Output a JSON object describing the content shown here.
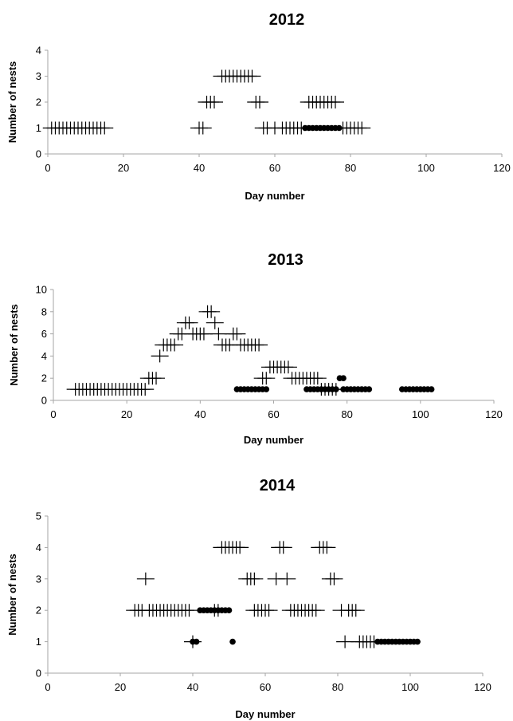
{
  "chart_data": [
    {
      "type": "scatter",
      "title": "2012",
      "xlabel": "Day number",
      "ylabel": "Number of nests",
      "xlim": [
        0,
        120
      ],
      "ylim": [
        0,
        4
      ],
      "xticks": [
        "0",
        "20",
        "40",
        "60",
        "80",
        "100",
        "120"
      ],
      "yticks": [
        "0",
        "1",
        "2",
        "3",
        "4"
      ],
      "grid": false,
      "series": [
        {
          "marker": "plus",
          "points": [
            [
              1,
              1
            ],
            [
              2,
              1
            ],
            [
              3,
              1
            ],
            [
              4,
              1
            ],
            [
              5,
              1
            ],
            [
              6,
              1
            ],
            [
              7,
              1
            ],
            [
              8,
              1
            ],
            [
              9,
              1
            ],
            [
              10,
              1
            ],
            [
              11,
              1
            ],
            [
              12,
              1
            ],
            [
              13,
              1
            ],
            [
              14,
              1
            ],
            [
              15,
              1
            ],
            [
              40,
              1
            ],
            [
              41,
              1
            ],
            [
              42,
              2
            ],
            [
              43,
              2
            ],
            [
              44,
              2
            ],
            [
              46,
              3
            ],
            [
              47,
              3
            ],
            [
              48,
              3
            ],
            [
              49,
              3
            ],
            [
              50,
              3
            ],
            [
              51,
              3
            ],
            [
              52,
              3
            ],
            [
              53,
              3
            ],
            [
              54,
              3
            ],
            [
              55,
              2
            ],
            [
              56,
              2
            ],
            [
              57,
              1
            ],
            [
              58,
              1
            ],
            [
              60,
              1
            ],
            [
              62,
              1
            ],
            [
              63,
              1
            ],
            [
              64,
              1
            ],
            [
              65,
              1
            ],
            [
              66,
              1
            ],
            [
              67,
              1
            ],
            [
              69,
              2
            ],
            [
              70,
              2
            ],
            [
              71,
              2
            ],
            [
              72,
              2
            ],
            [
              73,
              2
            ],
            [
              74,
              2
            ],
            [
              75,
              2
            ],
            [
              76,
              2
            ],
            [
              78,
              1
            ],
            [
              79,
              1
            ],
            [
              80,
              1
            ],
            [
              81,
              1
            ],
            [
              82,
              1
            ],
            [
              83,
              1
            ]
          ]
        },
        {
          "marker": "dot",
          "points": [
            [
              68,
              1
            ],
            [
              69,
              1
            ],
            [
              70,
              1
            ],
            [
              71,
              1
            ],
            [
              72,
              1
            ],
            [
              73,
              1
            ],
            [
              74,
              1
            ],
            [
              75,
              1
            ],
            [
              76,
              1
            ],
            [
              77,
              1
            ]
          ]
        }
      ]
    },
    {
      "type": "scatter",
      "title": "2013",
      "xlabel": "Day number",
      "ylabel": "Number of nests",
      "xlim": [
        0,
        120
      ],
      "ylim": [
        0,
        10
      ],
      "xticks": [
        "0",
        "20",
        "40",
        "60",
        "80",
        "100",
        "120"
      ],
      "yticks": [
        "0",
        "2",
        "4",
        "6",
        "8",
        "10"
      ],
      "grid": false,
      "series": [
        {
          "marker": "plus",
          "points": [
            [
              6,
              1
            ],
            [
              7,
              1
            ],
            [
              8,
              1
            ],
            [
              9,
              1
            ],
            [
              10,
              1
            ],
            [
              11,
              1
            ],
            [
              12,
              1
            ],
            [
              13,
              1
            ],
            [
              14,
              1
            ],
            [
              15,
              1
            ],
            [
              16,
              1
            ],
            [
              17,
              1
            ],
            [
              18,
              1
            ],
            [
              19,
              1
            ],
            [
              20,
              1
            ],
            [
              21,
              1
            ],
            [
              22,
              1
            ],
            [
              23,
              1
            ],
            [
              24,
              1
            ],
            [
              25,
              1
            ],
            [
              26,
              2
            ],
            [
              27,
              2
            ],
            [
              28,
              2
            ],
            [
              29,
              4
            ],
            [
              30,
              5
            ],
            [
              31,
              5
            ],
            [
              32,
              5
            ],
            [
              33,
              5
            ],
            [
              34,
              6
            ],
            [
              35,
              6
            ],
            [
              36,
              7
            ],
            [
              37,
              7
            ],
            [
              38,
              6
            ],
            [
              39,
              6
            ],
            [
              40,
              6
            ],
            [
              41,
              6
            ],
            [
              42,
              8
            ],
            [
              43,
              8
            ],
            [
              44,
              7
            ],
            [
              45,
              6
            ],
            [
              46,
              5
            ],
            [
              47,
              5
            ],
            [
              48,
              5
            ],
            [
              49,
              6
            ],
            [
              50,
              6
            ],
            [
              51,
              5
            ],
            [
              52,
              5
            ],
            [
              53,
              5
            ],
            [
              54,
              5
            ],
            [
              55,
              5
            ],
            [
              56,
              5
            ],
            [
              57,
              2
            ],
            [
              58,
              2
            ],
            [
              59,
              3
            ],
            [
              60,
              3
            ],
            [
              61,
              3
            ],
            [
              62,
              3
            ],
            [
              63,
              3
            ],
            [
              64,
              3
            ],
            [
              65,
              2
            ],
            [
              66,
              2
            ],
            [
              67,
              2
            ],
            [
              68,
              2
            ],
            [
              69,
              2
            ],
            [
              70,
              2
            ],
            [
              71,
              2
            ],
            [
              72,
              2
            ],
            [
              73,
              1
            ],
            [
              74,
              1
            ],
            [
              75,
              1
            ],
            [
              76,
              1
            ],
            [
              77,
              1
            ]
          ]
        },
        {
          "marker": "dot",
          "points": [
            [
              50,
              1
            ],
            [
              51,
              1
            ],
            [
              52,
              1
            ],
            [
              53,
              1
            ],
            [
              54,
              1
            ],
            [
              55,
              1
            ],
            [
              56,
              1
            ],
            [
              57,
              1
            ],
            [
              58,
              1
            ],
            [
              69,
              1
            ],
            [
              70,
              1
            ],
            [
              71,
              1
            ],
            [
              72,
              1
            ],
            [
              73,
              1
            ],
            [
              74,
              1
            ],
            [
              75,
              1
            ],
            [
              76,
              1
            ],
            [
              77,
              1
            ],
            [
              78,
              2
            ],
            [
              79,
              2
            ],
            [
              79,
              1
            ],
            [
              80,
              1
            ],
            [
              81,
              1
            ],
            [
              82,
              1
            ],
            [
              83,
              1
            ],
            [
              84,
              1
            ],
            [
              85,
              1
            ],
            [
              86,
              1
            ],
            [
              95,
              1
            ],
            [
              96,
              1
            ],
            [
              97,
              1
            ],
            [
              98,
              1
            ],
            [
              99,
              1
            ],
            [
              100,
              1
            ],
            [
              101,
              1
            ],
            [
              102,
              1
            ],
            [
              103,
              1
            ]
          ]
        }
      ]
    },
    {
      "type": "scatter",
      "title": "2014",
      "xlabel": "Day number",
      "ylabel": "Number of nests",
      "xlim": [
        0,
        120
      ],
      "ylim": [
        0,
        5
      ],
      "xticks": [
        "0",
        "20",
        "40",
        "60",
        "80",
        "100",
        "120"
      ],
      "yticks": [
        "0",
        "1",
        "2",
        "3",
        "4",
        "5"
      ],
      "grid": false,
      "series": [
        {
          "marker": "plus",
          "points": [
            [
              24,
              2
            ],
            [
              25,
              2
            ],
            [
              26,
              2
            ],
            [
              27,
              3
            ],
            [
              28,
              2
            ],
            [
              29,
              2
            ],
            [
              30,
              2
            ],
            [
              31,
              2
            ],
            [
              32,
              2
            ],
            [
              33,
              2
            ],
            [
              34,
              2
            ],
            [
              35,
              2
            ],
            [
              36,
              2
            ],
            [
              37,
              2
            ],
            [
              38,
              2
            ],
            [
              39,
              2
            ],
            [
              40,
              1
            ],
            [
              46,
              2
            ],
            [
              47,
              2
            ],
            [
              48,
              4
            ],
            [
              49,
              4
            ],
            [
              50,
              4
            ],
            [
              51,
              4
            ],
            [
              52,
              4
            ],
            [
              53,
              4
            ],
            [
              55,
              3
            ],
            [
              56,
              3
            ],
            [
              57,
              3
            ],
            [
              57,
              2
            ],
            [
              58,
              2
            ],
            [
              59,
              2
            ],
            [
              60,
              2
            ],
            [
              61,
              2
            ],
            [
              63,
              3
            ],
            [
              64,
              4
            ],
            [
              65,
              4
            ],
            [
              66,
              3
            ],
            [
              67,
              2
            ],
            [
              68,
              2
            ],
            [
              69,
              2
            ],
            [
              70,
              2
            ],
            [
              71,
              2
            ],
            [
              72,
              2
            ],
            [
              73,
              2
            ],
            [
              74,
              2
            ],
            [
              75,
              4
            ],
            [
              76,
              4
            ],
            [
              77,
              4
            ],
            [
              78,
              3
            ],
            [
              79,
              3
            ],
            [
              81,
              2
            ],
            [
              82,
              1
            ],
            [
              83,
              2
            ],
            [
              84,
              2
            ],
            [
              85,
              2
            ],
            [
              86,
              1
            ],
            [
              87,
              1
            ],
            [
              88,
              1
            ],
            [
              89,
              1
            ],
            [
              90,
              1
            ]
          ]
        },
        {
          "marker": "dot",
          "points": [
            [
              40,
              1
            ],
            [
              41,
              1
            ],
            [
              42,
              2
            ],
            [
              43,
              2
            ],
            [
              44,
              2
            ],
            [
              45,
              2
            ],
            [
              46,
              2
            ],
            [
              47,
              2
            ],
            [
              48,
              2
            ],
            [
              49,
              2
            ],
            [
              50,
              2
            ],
            [
              51,
              1
            ],
            [
              91,
              1
            ],
            [
              92,
              1
            ],
            [
              93,
              1
            ],
            [
              94,
              1
            ],
            [
              95,
              1
            ],
            [
              96,
              1
            ],
            [
              97,
              1
            ],
            [
              98,
              1
            ],
            [
              99,
              1
            ],
            [
              100,
              1
            ],
            [
              101,
              1
            ],
            [
              102,
              1
            ]
          ]
        }
      ]
    }
  ]
}
